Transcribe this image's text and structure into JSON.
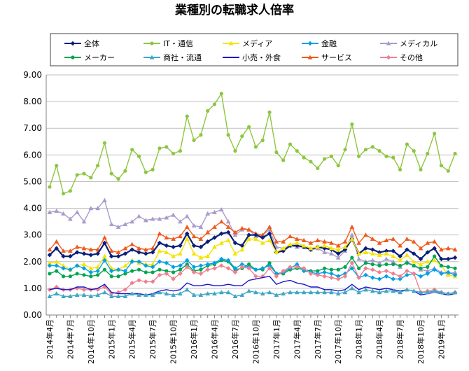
{
  "chart_data": {
    "type": "line",
    "title": "業種別の転職求人倍率",
    "ylim": [
      0,
      9
    ],
    "yticks": [
      "0.00",
      "1.00",
      "2.00",
      "3.00",
      "4.00",
      "5.00",
      "6.00",
      "7.00",
      "8.00",
      "9.00"
    ],
    "grid": "horizontal",
    "legend_position": "top",
    "x": [
      "2014年4月",
      "2014年5月",
      "2014年6月",
      "2014年7月",
      "2014年8月",
      "2014年9月",
      "2014年10月",
      "2014年11月",
      "2014年12月",
      "2015年1月",
      "2015年2月",
      "2015年3月",
      "2015年4月",
      "2015年5月",
      "2015年6月",
      "2015年7月",
      "2015年8月",
      "2015年9月",
      "2015年10月",
      "2015年11月",
      "2015年12月",
      "2016年1月",
      "2016年2月",
      "2016年3月",
      "2016年4月",
      "2016年5月",
      "2016年6月",
      "2016年7月",
      "2016年8月",
      "2016年9月",
      "2016年10月",
      "2016年11月",
      "2016年12月",
      "2017年1月",
      "2017年2月",
      "2017年3月",
      "2017年4月",
      "2017年5月",
      "2017年6月",
      "2017年7月",
      "2017年8月",
      "2017年9月",
      "2017年10月",
      "2017年11月",
      "2017年12月",
      "2018年1月",
      "2018年2月",
      "2018年3月",
      "2018年4月",
      "2018年5月",
      "2018年6月",
      "2018年7月",
      "2018年8月",
      "2018年9月",
      "2018年10月",
      "2018年11月",
      "2018年12月",
      "2019年1月",
      "2019年2月",
      "2019年3月"
    ],
    "xtick_labels": [
      "2014年4月",
      "2014年7月",
      "2014年10月",
      "2015年1月",
      "2015年4月",
      "2015年7月",
      "2015年10月",
      "2016年1月",
      "2016年4月",
      "2016年7月",
      "2016年10月",
      "2017年1月",
      "2017年4月",
      "2017年7月",
      "2017年10月",
      "2018年1月",
      "2018年4月",
      "2018年7月",
      "2018年10月",
      "2019年1月"
    ],
    "series": [
      {
        "name": "全体",
        "color": "#0a1f7a",
        "marker": "diamond",
        "values": [
          2.25,
          2.5,
          2.2,
          2.2,
          2.35,
          2.3,
          2.25,
          2.3,
          2.7,
          2.2,
          2.2,
          2.3,
          2.45,
          2.35,
          2.3,
          2.35,
          2.7,
          2.6,
          2.55,
          2.6,
          3.05,
          2.6,
          2.55,
          2.75,
          2.9,
          3.05,
          3.1,
          2.7,
          2.6,
          3.0,
          3.0,
          2.9,
          3.05,
          2.35,
          2.4,
          2.6,
          2.6,
          2.55,
          2.45,
          2.55,
          2.5,
          2.45,
          2.3,
          2.45,
          2.85,
          2.3,
          2.5,
          2.45,
          2.35,
          2.4,
          2.4,
          2.2,
          2.45,
          2.3,
          2.1,
          2.35,
          2.5,
          2.1,
          2.1,
          2.15
        ]
      },
      {
        "name": "IT・通信",
        "color": "#8dc63f",
        "marker": "circle",
        "values": [
          4.8,
          5.6,
          4.55,
          4.65,
          5.25,
          5.3,
          5.15,
          5.6,
          6.45,
          5.3,
          5.1,
          5.4,
          6.2,
          5.95,
          5.35,
          5.45,
          6.25,
          6.3,
          6.05,
          6.15,
          7.45,
          6.55,
          6.75,
          7.65,
          7.9,
          8.3,
          6.75,
          6.15,
          6.7,
          7.05,
          6.3,
          6.55,
          7.6,
          6.1,
          5.8,
          6.4,
          6.15,
          5.9,
          5.75,
          5.5,
          5.85,
          5.95,
          5.6,
          6.2,
          7.15,
          5.95,
          6.2,
          6.3,
          6.15,
          5.95,
          5.9,
          5.45,
          6.4,
          6.15,
          5.45,
          6.05,
          6.8,
          5.6,
          5.4,
          6.05
        ]
      },
      {
        "name": "メディア",
        "color": "#f4e400",
        "marker": "triangle",
        "values": [
          1.95,
          2.0,
          1.85,
          1.7,
          1.85,
          1.9,
          1.75,
          1.8,
          2.2,
          1.75,
          1.7,
          1.85,
          2.05,
          1.95,
          1.9,
          1.9,
          2.4,
          2.35,
          2.2,
          2.3,
          2.85,
          2.3,
          2.15,
          2.2,
          2.55,
          2.7,
          2.8,
          2.3,
          2.45,
          2.85,
          2.85,
          2.7,
          2.8,
          2.35,
          2.5,
          2.65,
          2.7,
          2.6,
          2.5,
          2.55,
          2.6,
          2.5,
          2.45,
          2.55,
          2.85,
          2.3,
          2.35,
          2.3,
          2.25,
          2.3,
          2.2,
          2.05,
          2.25,
          2.0,
          1.9,
          2.0,
          2.05,
          1.85,
          1.5,
          1.45
        ]
      },
      {
        "name": "金融",
        "color": "#00a0e9",
        "marker": "diamond",
        "values": [
          1.85,
          1.85,
          1.75,
          1.7,
          1.85,
          1.75,
          1.6,
          1.65,
          2.05,
          1.65,
          1.7,
          1.65,
          2.0,
          2.0,
          1.85,
          1.8,
          2.0,
          1.95,
          1.8,
          1.85,
          2.05,
          1.8,
          1.85,
          1.9,
          1.95,
          2.1,
          2.05,
          1.75,
          1.9,
          1.8,
          1.7,
          1.75,
          1.85,
          1.55,
          1.6,
          1.75,
          1.9,
          1.65,
          1.6,
          1.55,
          1.6,
          1.55,
          1.45,
          1.55,
          1.75,
          1.4,
          1.5,
          1.4,
          1.35,
          1.45,
          1.35,
          1.35,
          1.5,
          1.55,
          1.45,
          1.55,
          1.7,
          1.55,
          1.6,
          1.5
        ]
      },
      {
        "name": "メディカル",
        "color": "#a99bcd",
        "marker": "triangle",
        "values": [
          3.85,
          3.9,
          3.8,
          3.6,
          3.85,
          3.5,
          4.0,
          4.0,
          4.3,
          3.4,
          3.3,
          3.4,
          3.5,
          3.7,
          3.55,
          3.6,
          3.6,
          3.65,
          3.75,
          3.5,
          3.7,
          3.35,
          3.3,
          3.8,
          3.85,
          3.95,
          3.5,
          3.0,
          3.2,
          3.2,
          2.95,
          3.0,
          3.2,
          2.55,
          2.5,
          2.6,
          2.55,
          2.55,
          2.45,
          2.5,
          2.35,
          2.3,
          2.15,
          2.4,
          3.0,
          2.1,
          2.0,
          2.05,
          1.95,
          2.1,
          2.0,
          1.8,
          2.0,
          1.85,
          1.7,
          1.65,
          1.75,
          1.6,
          1.55,
          1.6
        ]
      },
      {
        "name": "メーカー",
        "color": "#00a550",
        "marker": "circle",
        "values": [
          1.55,
          1.65,
          1.45,
          1.45,
          1.55,
          1.5,
          1.45,
          1.5,
          1.7,
          1.45,
          1.45,
          1.55,
          1.65,
          1.7,
          1.6,
          1.6,
          1.7,
          1.65,
          1.6,
          1.7,
          1.9,
          1.65,
          1.7,
          1.85,
          1.9,
          2.05,
          2.0,
          1.7,
          1.75,
          1.9,
          1.7,
          1.7,
          1.95,
          1.55,
          1.55,
          1.7,
          1.75,
          1.7,
          1.65,
          1.65,
          1.75,
          1.7,
          1.7,
          1.8,
          2.15,
          1.75,
          1.95,
          1.9,
          1.85,
          1.9,
          1.9,
          1.85,
          1.95,
          1.85,
          1.75,
          1.8,
          2.2,
          1.85,
          1.8,
          1.75
        ]
      },
      {
        "name": "商社・流通",
        "color": "#3fa7c4",
        "marker": "triangle",
        "values": [
          0.7,
          0.8,
          0.7,
          0.7,
          0.75,
          0.75,
          0.7,
          0.75,
          0.85,
          0.7,
          0.7,
          0.7,
          0.8,
          0.75,
          0.75,
          0.75,
          0.85,
          0.8,
          0.75,
          0.8,
          0.95,
          0.75,
          0.75,
          0.8,
          0.8,
          0.85,
          0.85,
          0.7,
          0.75,
          0.9,
          0.85,
          0.8,
          0.85,
          0.75,
          0.8,
          0.85,
          0.85,
          0.85,
          0.85,
          0.85,
          0.85,
          0.85,
          0.8,
          0.85,
          1.0,
          0.85,
          0.95,
          0.9,
          0.85,
          0.9,
          0.9,
          0.85,
          0.95,
          0.9,
          0.85,
          0.85,
          0.9,
          0.85,
          0.8,
          0.85
        ]
      },
      {
        "name": "小売・外食",
        "color": "#1a16c8",
        "marker": "none",
        "values": [
          0.95,
          1.0,
          0.95,
          0.95,
          1.05,
          1.05,
          0.95,
          1.0,
          1.15,
          0.85,
          0.8,
          0.8,
          0.8,
          0.8,
          0.75,
          0.8,
          0.9,
          0.95,
          0.9,
          0.95,
          1.2,
          1.1,
          1.1,
          1.15,
          1.1,
          1.1,
          1.15,
          1.1,
          1.1,
          1.3,
          1.35,
          1.4,
          1.45,
          1.15,
          1.25,
          1.3,
          1.2,
          1.15,
          1.05,
          1.05,
          0.95,
          0.95,
          0.9,
          0.95,
          1.15,
          0.95,
          1.05,
          1.0,
          0.95,
          1.0,
          0.95,
          0.9,
          0.95,
          0.9,
          0.75,
          0.8,
          0.85,
          0.8,
          0.75,
          0.8
        ]
      },
      {
        "name": "サービス",
        "color": "#f05a1a",
        "marker": "triangle",
        "values": [
          2.45,
          2.75,
          2.4,
          2.4,
          2.55,
          2.5,
          2.45,
          2.45,
          2.9,
          2.4,
          2.35,
          2.5,
          2.65,
          2.5,
          2.45,
          2.5,
          3.05,
          2.9,
          2.85,
          2.95,
          3.3,
          2.95,
          2.85,
          3.1,
          3.3,
          3.5,
          3.3,
          3.1,
          3.25,
          3.2,
          3.05,
          3.0,
          3.3,
          2.75,
          2.75,
          2.95,
          2.85,
          2.8,
          2.7,
          2.8,
          2.75,
          2.7,
          2.6,
          2.75,
          3.3,
          2.7,
          3.0,
          2.85,
          2.7,
          2.8,
          2.85,
          2.6,
          2.85,
          2.75,
          2.5,
          2.7,
          2.75,
          2.45,
          2.5,
          2.45
        ]
      },
      {
        "name": "その他",
        "color": "#f08090",
        "marker": "diamond",
        "values": [
          0.95,
          1.05,
          0.95,
          0.95,
          1.0,
          0.95,
          0.95,
          0.95,
          1.05,
          0.8,
          0.85,
          0.95,
          1.2,
          1.3,
          1.25,
          1.25,
          1.5,
          1.55,
          1.35,
          1.55,
          1.8,
          1.6,
          1.55,
          1.7,
          1.75,
          1.85,
          1.75,
          1.6,
          1.8,
          1.75,
          1.45,
          1.45,
          1.75,
          1.45,
          1.65,
          1.8,
          1.8,
          1.75,
          1.55,
          1.5,
          1.45,
          1.4,
          1.35,
          1.45,
          1.95,
          1.4,
          1.75,
          1.7,
          1.6,
          1.65,
          1.55,
          1.45,
          1.65,
          1.55,
          0.85,
          0.9,
          0.95,
          0.85,
          0.8,
          0.85
        ]
      }
    ]
  }
}
